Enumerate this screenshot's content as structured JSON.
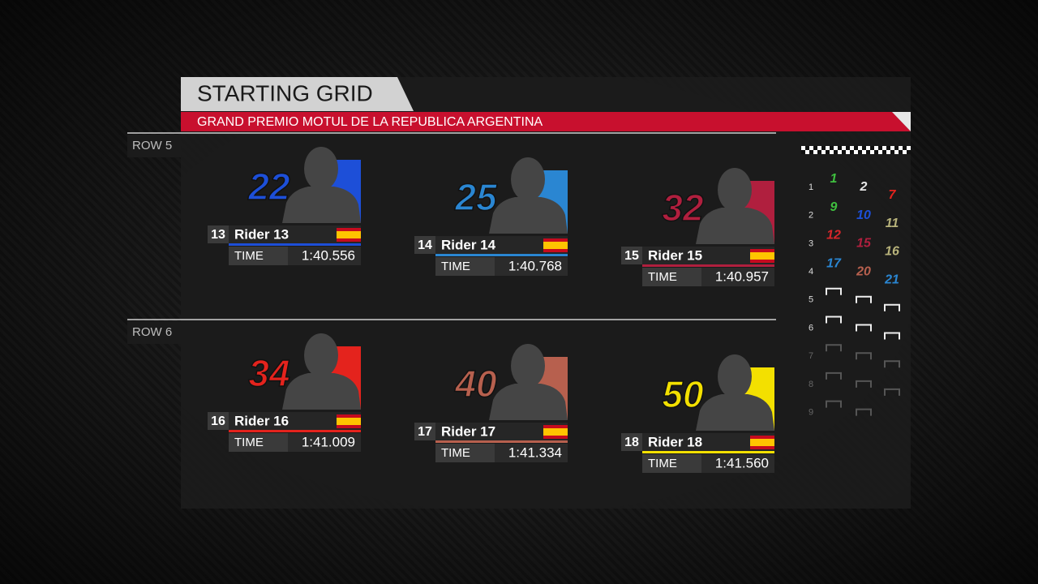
{
  "header": {
    "title": "STARTING GRID",
    "subtitle": "GRAND PREMIO MOTUL DE LA REPUBLICA ARGENTINA"
  },
  "time_label": "TIME",
  "rows": [
    {
      "label": "ROW 5",
      "riders": [
        {
          "number": 22,
          "position": 13,
          "name": "Rider 13",
          "time": "1:40.556",
          "color": "#1d4fd8"
        },
        {
          "number": 25,
          "position": 14,
          "name": "Rider 14",
          "time": "1:40.768",
          "color": "#2a86d2"
        },
        {
          "number": 32,
          "position": 15,
          "name": "Rider 15",
          "time": "1:40.957",
          "color": "#b01f3e"
        }
      ]
    },
    {
      "label": "ROW 6",
      "riders": [
        {
          "number": 34,
          "position": 16,
          "name": "Rider 16",
          "time": "1:41.009",
          "color": "#e4231d"
        },
        {
          "number": 40,
          "position": 17,
          "name": "Rider 17",
          "time": "1:41.334",
          "color": "#b7604e"
        },
        {
          "number": 50,
          "position": 18,
          "name": "Rider 18",
          "time": "1:41.560",
          "color": "#f3e000"
        }
      ]
    }
  ],
  "grid_map": {
    "row_numbers": [
      1,
      2,
      3,
      4,
      5,
      6,
      7,
      8,
      9
    ],
    "columns": [
      [
        {
          "number": 1,
          "color": "#3fbf3f"
        },
        {
          "number": 9,
          "color": "#3fbf3f"
        },
        {
          "number": 12,
          "color": "#d6262a"
        },
        {
          "number": 17,
          "color": "#2a86d2"
        }
      ],
      [
        {
          "number": 2,
          "color": "#e6e6e6"
        },
        {
          "number": 10,
          "color": "#1d4fd8"
        },
        {
          "number": 15,
          "color": "#b01f3e"
        },
        {
          "number": 20,
          "color": "#b7604e"
        }
      ],
      [
        {
          "number": 7,
          "color": "#e4231d"
        },
        {
          "number": 11,
          "color": "#b7b27a"
        },
        {
          "number": 16,
          "color": "#b7b27a"
        },
        {
          "number": 21,
          "color": "#2a86d2"
        }
      ]
    ]
  }
}
